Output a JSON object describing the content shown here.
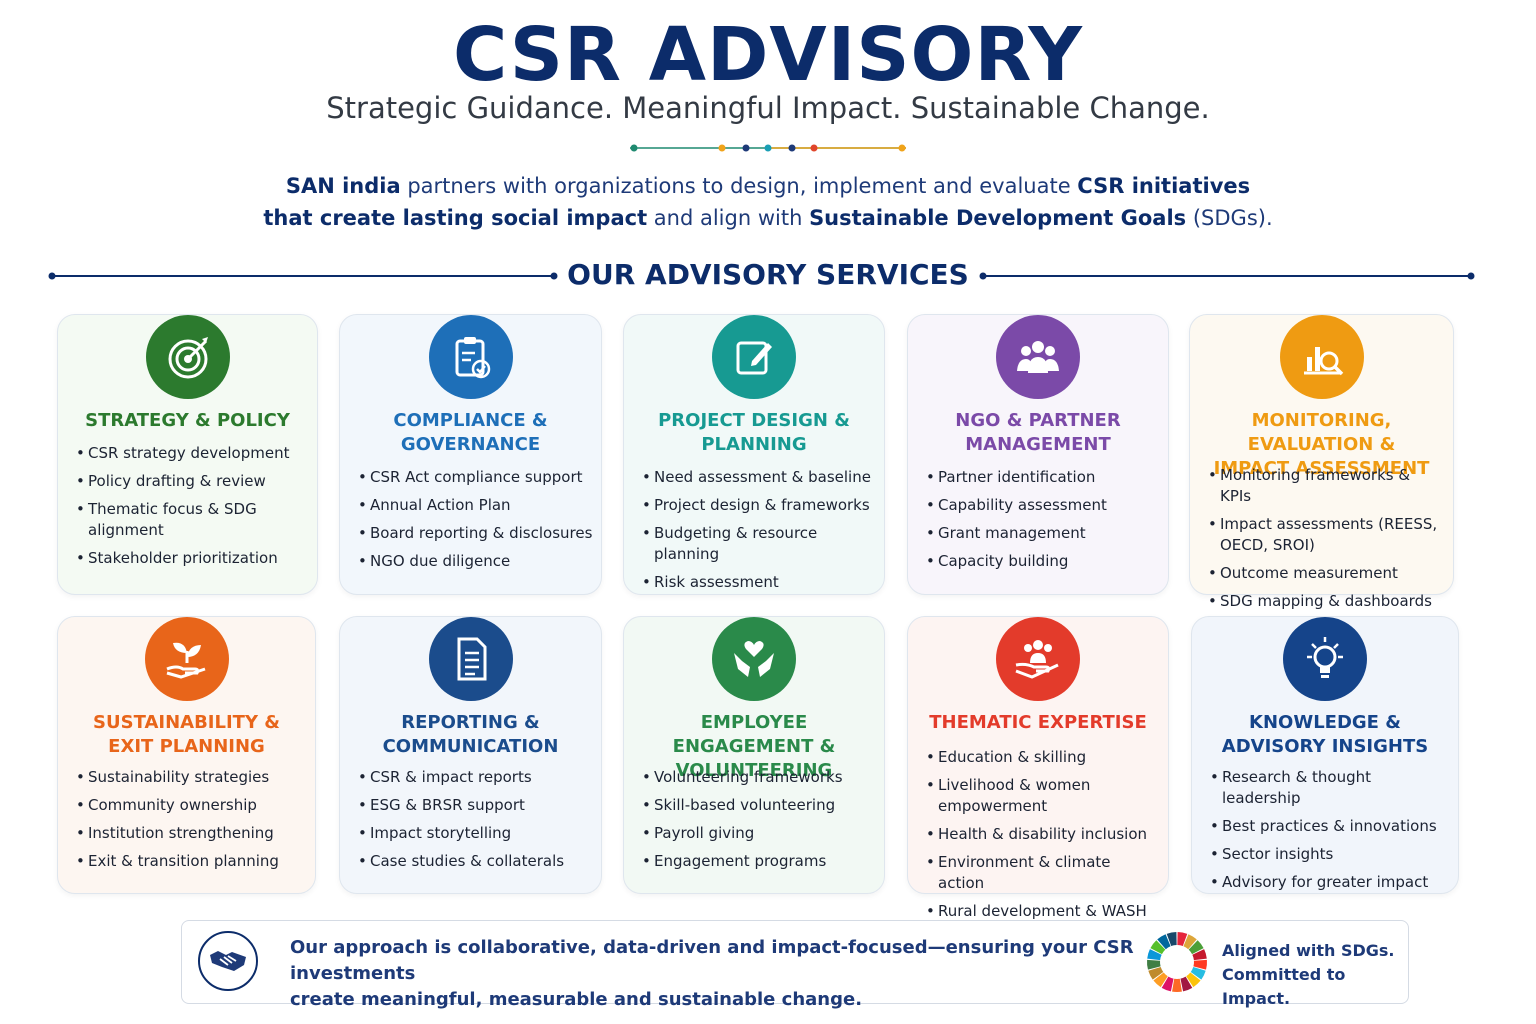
{
  "header": {
    "title": "CSR ADVISORY",
    "subtitle": "Strategic Guidance. Meaningful Impact. Sustainable Change.",
    "intro_line1": [
      {
        "text": "SAN india",
        "bold": true
      },
      {
        "text": " partners with organizations to design, implement and evaluate ",
        "bold": false
      },
      {
        "text": "CSR initiatives",
        "bold": true
      }
    ],
    "intro_line2": [
      {
        "text": "that create lasting social impact",
        "bold": true
      },
      {
        "text": " and align with ",
        "bold": false
      },
      {
        "text": "Sustainable Development Goals",
        "bold": true
      },
      {
        "text": " (SDGs).",
        "bold": false
      }
    ]
  },
  "section_title": "OUR ADVISORY SERVICES",
  "colors": {
    "navy": "#0c2c6a",
    "dot_divider": [
      "#1f8a70",
      "#f0a31a",
      "#1e3a78",
      "#1a9fb5",
      "#1e3a78",
      "#e0452b"
    ]
  },
  "cards": [
    {
      "icon": "target-icon",
      "color": "#2c7a2e",
      "bg": "#f4faf3",
      "title_lines": [
        "STRATEGY & POLICY"
      ],
      "items": [
        "CSR strategy development",
        "Policy drafting & review",
        "Thematic focus & SDG alignment",
        "Stakeholder prioritization"
      ]
    },
    {
      "icon": "clipboard-check-icon",
      "color": "#1e6fb8",
      "bg": "#f2f7fc",
      "title_lines": [
        "COMPLIANCE &",
        "GOVERNANCE"
      ],
      "items": [
        "CSR Act compliance support",
        "Annual Action Plan",
        "Board reporting & disclosures",
        "NGO due diligence"
      ]
    },
    {
      "icon": "edit-document-icon",
      "color": "#179a92",
      "bg": "#f1f9f8",
      "title_lines": [
        "PROJECT DESIGN &",
        "PLANNING"
      ],
      "items": [
        "Need assessment & baseline",
        "Project design & frameworks",
        "Budgeting & resource planning",
        "Risk assessment"
      ]
    },
    {
      "icon": "people-group-icon",
      "color": "#7b4aa8",
      "bg": "#f8f5fb",
      "title_lines": [
        "NGO & PARTNER",
        "MANAGEMENT"
      ],
      "items": [
        "Partner identification",
        "Capability assessment",
        "Grant management",
        "Capacity building"
      ]
    },
    {
      "icon": "chart-magnifier-icon",
      "color": "#ef9b12",
      "bg": "#fdf9f1",
      "title_lines": [
        "MONITORING, EVALUATION &",
        "IMPACT ASSESSMENT"
      ],
      "items": [
        "Monitoring frameworks & KPIs",
        "Impact assessments (REESS, OECD, SROI)",
        "Outcome measurement",
        "SDG mapping & dashboards"
      ]
    },
    {
      "icon": "sprout-hand-icon",
      "color": "#e8651a",
      "bg": "#fdf6f1",
      "title_lines": [
        "SUSTAINABILITY &",
        "EXIT PLANNING"
      ],
      "items": [
        "Sustainability strategies",
        "Community ownership",
        "Institution strengthening",
        "Exit & transition planning"
      ]
    },
    {
      "icon": "document-icon",
      "color": "#1b4c8c",
      "bg": "#f2f6fb",
      "title_lines": [
        "REPORTING &",
        "COMMUNICATION"
      ],
      "items": [
        "CSR & impact reports",
        "ESG & BRSR support",
        "Impact storytelling",
        "Case studies & collaterals"
      ]
    },
    {
      "icon": "heart-hands-icon",
      "color": "#2a8a4a",
      "bg": "#f2f9f4",
      "title_lines": [
        "EMPLOYEE ENGAGEMENT &",
        "VOLUNTEERING"
      ],
      "items": [
        "Volunteering frameworks",
        "Skill-based volunteering",
        "Payroll giving",
        "Engagement programs"
      ]
    },
    {
      "icon": "community-hand-icon",
      "color": "#e33b2b",
      "bg": "#fdf4f2",
      "title_lines": [
        "THEMATIC EXPERTISE"
      ],
      "items": [
        "Education & skilling",
        "Livelihood & women empowerment",
        "Health & disability inclusion",
        "Environment & climate action",
        "Rural development & WASH"
      ]
    },
    {
      "icon": "lightbulb-icon",
      "color": "#15448a",
      "bg": "#f1f5fb",
      "title_lines": [
        "KNOWLEDGE &",
        "ADVISORY INSIGHTS"
      ],
      "items": [
        "Research & thought leadership",
        "Best practices & innovations",
        "Sector insights",
        "Advisory for greater impact"
      ]
    }
  ],
  "footer": {
    "icon": "handshake-icon",
    "message_line1": "Our approach is collaborative, data-driven and impact-focused—ensuring your CSR investments",
    "message_line2": "create meaningful, measurable and sustainable change.",
    "sdg_icon": "sdg-wheel-icon",
    "aligned_line1": "Aligned with SDGs.",
    "aligned_line2": "Committed to Impact.",
    "sdg_colors": [
      "#e5243b",
      "#dda63a",
      "#4c9f38",
      "#c5192d",
      "#ff3a21",
      "#26bde2",
      "#fcc30b",
      "#a21942",
      "#fd6925",
      "#dd1367",
      "#fd9d24",
      "#bf8b2e",
      "#3f7e44",
      "#0a97d9",
      "#56c02b",
      "#00689d",
      "#19486a"
    ]
  }
}
